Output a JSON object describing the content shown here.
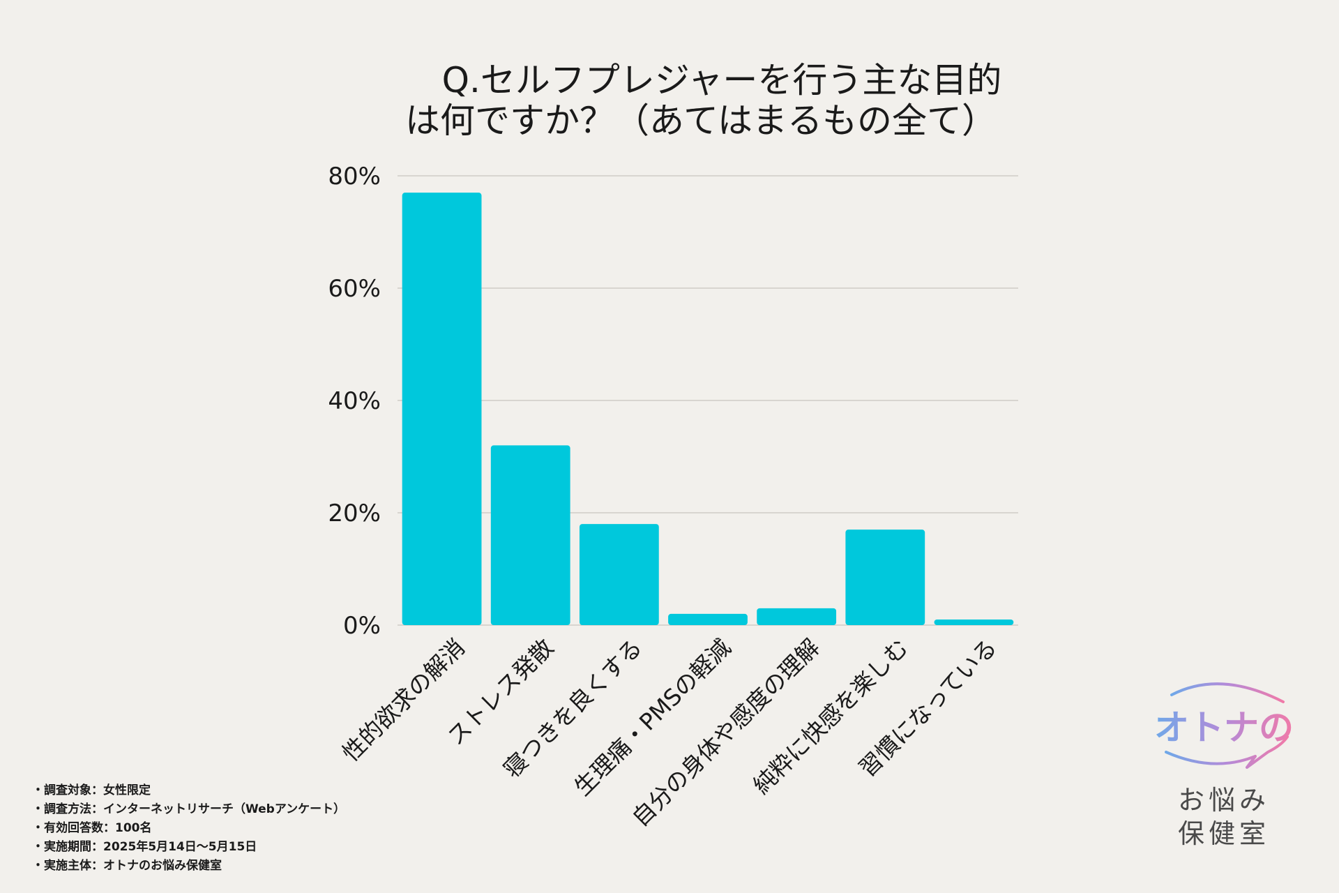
{
  "chart_data": {
    "type": "bar",
    "title_lines": [
      "Q.セルフプレジャーを行う主な目的",
      "は何ですか？（あてはまるもの全て）"
    ],
    "categories": [
      "性的欲求の解消",
      "ストレス発散",
      "寝つきを良くする",
      "生理痛・PMSの軽減",
      "自分の身体や感度の理解",
      "純粋に快感を楽しむ",
      "習慣になっている"
    ],
    "values": [
      77,
      32,
      18,
      2,
      3,
      17,
      1
    ],
    "ylim": [
      0,
      80
    ],
    "yticks": [
      0,
      20,
      40,
      60,
      80
    ],
    "ytick_labels": [
      "0%",
      "20%",
      "40%",
      "60%",
      "80%"
    ],
    "bar_color": "#00c8dc",
    "grid": true,
    "xlabel": "",
    "ylabel": ""
  },
  "footer": {
    "items": [
      "調査対象：女性限定",
      "調査方法：インターネットリサーチ（Webアンケート）",
      "有効回答数：100名",
      "実施期間：2025年5月14日〜5月15日",
      "実施主体：オトナのお悩み保健室"
    ]
  },
  "logo": {
    "main": "オトナの",
    "sub_line1": "お悩み",
    "sub_line2": "保健室"
  }
}
